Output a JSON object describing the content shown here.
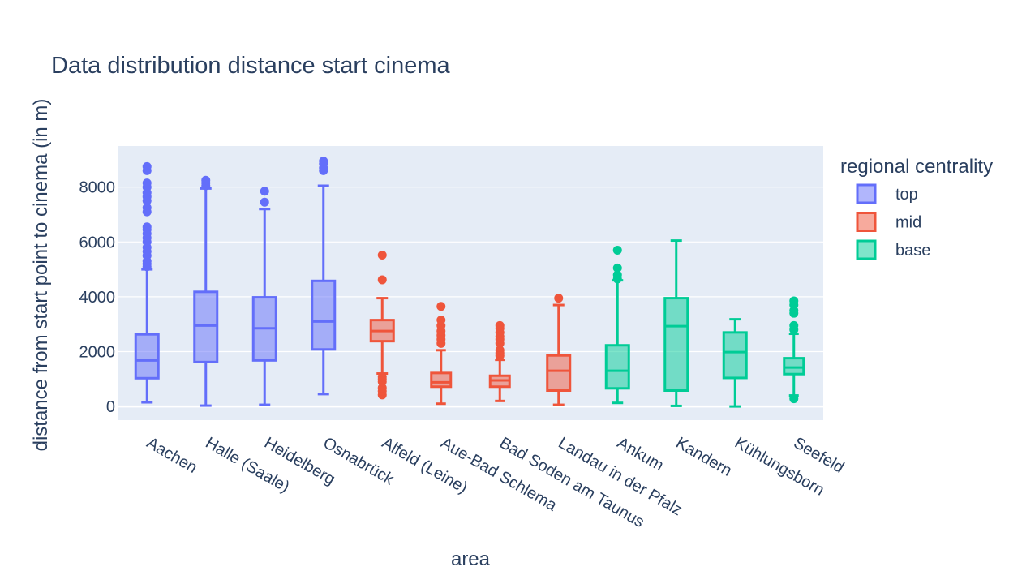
{
  "chart_data": {
    "type": "box",
    "title": "Data distribution distance start cinema",
    "xlabel": "area",
    "ylabel": "distance from start point to cinema (in m)",
    "ylim": [
      -500,
      9500
    ],
    "yticks": [
      0,
      2000,
      4000,
      6000,
      8000
    ],
    "grid": true,
    "legend_title": "regional centrality",
    "legend_position": "right",
    "categories": [
      "Aachen",
      "Halle (Saale)",
      "Heidelberg",
      "Osnabrück",
      "Alfeld (Leine)",
      "Aue-Bad Schlema",
      "Bad Soden am Taunus",
      "Landau in der Pfalz",
      "Ankum",
      "Kandern",
      "Kühlungsborn",
      "Seefeld"
    ],
    "series": [
      {
        "name": "top",
        "color": "#636efa",
        "boxes": [
          {
            "category": "Aachen",
            "min": 150,
            "q1": 1030,
            "median": 1680,
            "q3": 2630,
            "max": 5000,
            "outliers": [
              5100,
              5200,
              5300,
              5500,
              5650,
              5800,
              6000,
              6150,
              6300,
              6450,
              6550,
              7100,
              7250,
              7500,
              7650,
              7800,
              8000,
              8150,
              8600,
              8750
            ]
          },
          {
            "category": "Halle (Saale)",
            "min": 30,
            "q1": 1620,
            "median": 2950,
            "q3": 4180,
            "max": 7950,
            "outliers": [
              8050,
              8150,
              8250
            ]
          },
          {
            "category": "Heidelberg",
            "min": 60,
            "q1": 1680,
            "median": 2850,
            "q3": 3980,
            "max": 7200,
            "outliers": [
              7450,
              7850
            ]
          },
          {
            "category": "Osnabrück",
            "min": 450,
            "q1": 2080,
            "median": 3100,
            "q3": 4580,
            "max": 8050,
            "outliers": [
              8600,
              8700,
              8850,
              8950
            ]
          }
        ]
      },
      {
        "name": "mid",
        "color": "#ef553b",
        "boxes": [
          {
            "category": "Alfeld (Leine)",
            "min": 1200,
            "q1": 2380,
            "median": 2750,
            "q3": 3150,
            "max": 3950,
            "outliers": [
              420,
              560,
              680,
              900,
              1000,
              1080,
              4620,
              5520
            ]
          },
          {
            "category": "Aue-Bad Schlema",
            "min": 100,
            "q1": 720,
            "median": 880,
            "q3": 1220,
            "max": 2050,
            "outliers": [
              2300,
              2450,
              2600,
              2750,
              2950,
              3150,
              3650
            ]
          },
          {
            "category": "Bad Soden am Taunus",
            "min": 200,
            "q1": 720,
            "median": 950,
            "q3": 1120,
            "max": 1700,
            "outliers": [
              1850,
              1950,
              2050,
              2300,
              2450,
              2550,
              2700,
              2850,
              2950
            ]
          },
          {
            "category": "Landau in der Pfalz",
            "min": 60,
            "q1": 580,
            "median": 1300,
            "q3": 1860,
            "max": 3700,
            "outliers": [
              3950
            ]
          }
        ]
      },
      {
        "name": "base",
        "color": "#00cc96",
        "boxes": [
          {
            "category": "Ankum",
            "min": 130,
            "q1": 660,
            "median": 1300,
            "q3": 2230,
            "max": 4600,
            "outliers": [
              4650,
              4800,
              5050,
              5700
            ]
          },
          {
            "category": "Kandern",
            "min": 20,
            "q1": 580,
            "median": 2930,
            "q3": 3950,
            "max": 6050,
            "outliers": []
          },
          {
            "category": "Kühlungsborn",
            "min": 0,
            "q1": 1040,
            "median": 1980,
            "q3": 2700,
            "max": 3180,
            "outliers": []
          },
          {
            "category": "Seefeld",
            "min": 400,
            "q1": 1180,
            "median": 1420,
            "q3": 1760,
            "max": 2650,
            "outliers": [
              280,
              2800,
              2950,
              3400,
              3500,
              3700,
              3850
            ]
          }
        ]
      }
    ]
  }
}
